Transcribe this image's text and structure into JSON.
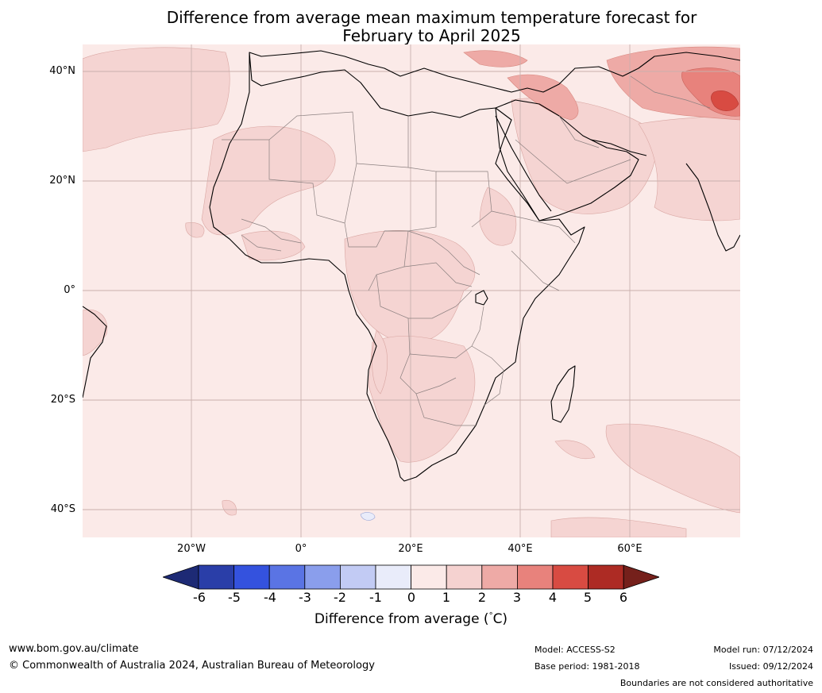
{
  "title": {
    "line1": "Difference from average mean maximum temperature forecast for",
    "line2": "February to April 2025"
  },
  "map": {
    "region": "Africa and Middle East",
    "lat_labels": [
      "40°N",
      "20°N",
      "0°",
      "20°S",
      "40°S"
    ],
    "lon_labels": [
      "20°W",
      "0°",
      "20°E",
      "40°E",
      "60°E"
    ],
    "background_anomaly_color": "#fbeae8"
  },
  "colorbar": {
    "ticks": [
      "-6",
      "-5",
      "-4",
      "-3",
      "-2",
      "-1",
      "0",
      "1",
      "2",
      "3",
      "4",
      "5",
      "6"
    ],
    "colors": [
      "#1d2a75",
      "#2a3ea8",
      "#3452de",
      "#5a74e4",
      "#8a9eec",
      "#c2cbf4",
      "#e9ecfa",
      "#fbeae8",
      "#f5d2d0",
      "#eeaaa6",
      "#e8827c",
      "#d84b42",
      "#ad2b24",
      "#75201b"
    ],
    "label": "Difference from average (",
    "unit_symbol": "°",
    "unit_letter": "C)"
  },
  "footer": {
    "website": "www.bom.gov.au/climate",
    "copyright": "© Commonwealth of Australia 2024, Australian Bureau of Meteorology",
    "model": "Model: ACCESS-S2",
    "base_period": "Base period: 1981-2018",
    "model_run": "Model run: 07/12/2024",
    "issued": "Issued: 09/12/2024",
    "disclaimer": "Boundaries are not considered authoritative"
  }
}
